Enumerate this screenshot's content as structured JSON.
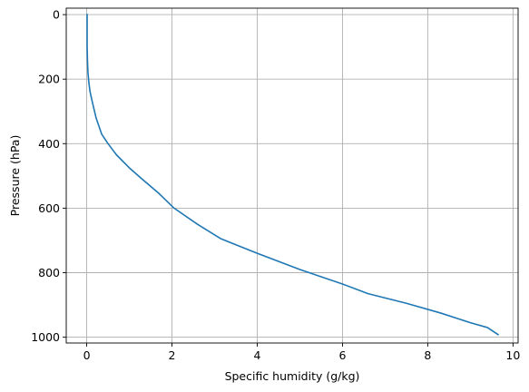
{
  "chart_data": {
    "type": "line",
    "title": "",
    "xlabel": "Specific humidity (g/kg)",
    "ylabel": "Pressure (hPa)",
    "xlim": [
      -0.48,
      10.12
    ],
    "ylim": [
      1018,
      -20
    ],
    "y_inverted": true,
    "xticks": [
      0,
      2,
      4,
      6,
      8,
      10
    ],
    "yticks": [
      0,
      200,
      400,
      600,
      800,
      1000
    ],
    "grid": true,
    "line_color": "#1f77b4",
    "series": [
      {
        "x": [
          0.01,
          0.01,
          0.01,
          0.02,
          0.03,
          0.05,
          0.08,
          0.13,
          0.22,
          0.35,
          0.5,
          0.7,
          1.0,
          1.3,
          1.7,
          2.05,
          2.6,
          3.15,
          4.0,
          5.0,
          6.0,
          6.6,
          7.5,
          8.3,
          9.0,
          9.4,
          9.65
        ],
        "y": [
          0,
          50,
          100,
          150,
          180,
          210,
          240,
          270,
          320,
          370,
          400,
          435,
          475,
          510,
          555,
          600,
          650,
          695,
          740,
          790,
          835,
          865,
          895,
          925,
          955,
          970,
          992
        ]
      }
    ]
  }
}
